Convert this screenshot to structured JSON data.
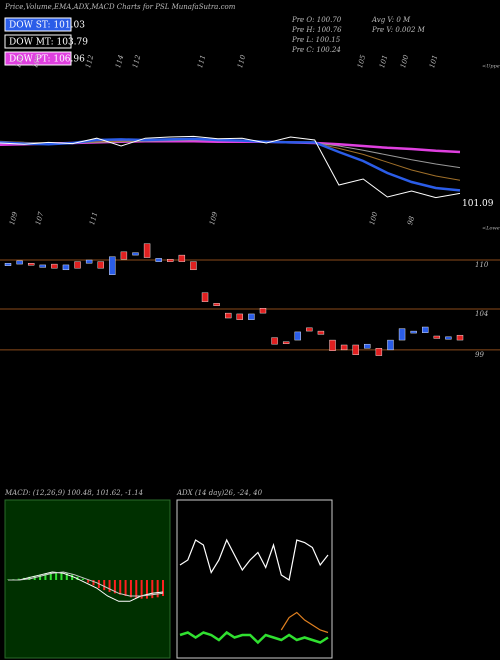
{
  "header": {
    "title": "Price,Volume,EMA,ADX,MACD Charts for PSL MunafaSutra.com"
  },
  "legend": [
    {
      "label": "DOW ST: 101.03",
      "color": "#2b5de8"
    },
    {
      "label": "DOW MT: 103.79",
      "color": "#000000"
    },
    {
      "label": "DOW PT: 106.96",
      "color": "#e040e0"
    }
  ],
  "stats": [
    [
      "Pre O: 100.70",
      "Avg V: 0 M"
    ],
    [
      "Pre H: 100.76",
      "Pre V: 0.002 M"
    ],
    [
      "Pre L: 100.15"
    ],
    [
      "Pre C: 100.24"
    ]
  ],
  "chart_data": [
    {
      "type": "line",
      "ylim": [
        95,
        120
      ],
      "last_price": 101.09,
      "upper_tag": "<Upper",
      "lower_tag": "<Lower",
      "upper_labels": [
        110,
        109,
        112,
        114,
        112,
        111,
        110,
        105,
        101,
        100,
        101
      ],
      "lower_labels": [
        109,
        107,
        111,
        109,
        100,
        98
      ],
      "series": [
        {
          "color": "#e040e0",
          "width": 2.5,
          "values": [
            109.2,
            109.3,
            109.4,
            109.5,
            109.6,
            109.7,
            109.8,
            109.8,
            109.8,
            109.7,
            109.7,
            109.7,
            109.6,
            109.5,
            109.3,
            109.0,
            108.7,
            108.5,
            108.2,
            108.0
          ]
        },
        {
          "color": "#999999",
          "width": 1,
          "values": [
            109.7,
            109.6,
            109.5,
            109.5,
            109.6,
            109.7,
            109.8,
            109.9,
            110.0,
            109.9,
            109.8,
            109.7,
            109.6,
            109.5,
            109.0,
            108.3,
            107.5,
            106.7,
            106.0,
            105.4
          ]
        },
        {
          "color": "#a0702a",
          "width": 1,
          "values": [
            109.8,
            109.6,
            109.5,
            109.5,
            109.7,
            109.8,
            109.9,
            110.0,
            110.1,
            110.0,
            109.9,
            109.7,
            109.6,
            109.5,
            108.6,
            107.6,
            106.3,
            105.0,
            104.0,
            103.3
          ]
        },
        {
          "color": "#2b5de8",
          "width": 2.5,
          "values": [
            109.6,
            109.4,
            109.3,
            109.5,
            110.0,
            110.1,
            110.0,
            110.1,
            110.2,
            110.0,
            109.9,
            109.7,
            109.6,
            109.6,
            108.0,
            106.5,
            104.5,
            103.0,
            102.0,
            101.6
          ]
        },
        {
          "color": "#ffffff",
          "width": 1,
          "values": [
            109.5,
            109.3,
            109.6,
            109.4,
            110.3,
            109.0,
            110.3,
            110.5,
            110.6,
            110.2,
            110.3,
            109.5,
            110.5,
            110.0,
            102.5,
            103.5,
            100.5,
            101.5,
            100.4,
            101.1
          ]
        }
      ]
    },
    {
      "type": "candlestick",
      "ylim": [
        96,
        113
      ],
      "yticks": [
        110,
        104,
        99
      ],
      "up_color": "#2b5de8",
      "down_color": "#e02020",
      "open": [
        109.3,
        109.5,
        109.6,
        109.1,
        109.5,
        108.8,
        109.8,
        109.6,
        109.8,
        108.2,
        111.0,
        110.6,
        112.0,
        109.8,
        110.1,
        110.6,
        109.8,
        106.0,
        104.7,
        103.5,
        103.4,
        102.7,
        104.1,
        100.5,
        100.0,
        100.2,
        101.7,
        101.3,
        100.2,
        99.6,
        99.6,
        99.2,
        99.2,
        99.0,
        100.2,
        101.1,
        101.1,
        100.7,
        100.3,
        100.8
      ],
      "close": [
        109.6,
        109.9,
        109.4,
        109.4,
        109.0,
        109.4,
        109.0,
        110.0,
        109.0,
        110.4,
        110.1,
        110.9,
        110.3,
        110.2,
        109.8,
        109.8,
        108.8,
        104.9,
        104.4,
        102.9,
        102.7,
        103.4,
        103.5,
        99.7,
        99.9,
        101.2,
        101.3,
        100.9,
        98.9,
        99.0,
        98.4,
        99.7,
        98.3,
        100.2,
        101.6,
        101.3,
        101.8,
        100.4,
        100.6,
        100.2
      ]
    },
    {
      "type": "macd",
      "title": "MACD: (12,26,9) 100.48, 101.62, -1.14",
      "ylim": [
        -3,
        3
      ],
      "up_color": "#30e030",
      "down_color": "#ff2020",
      "histogram": [
        0.02,
        0.03,
        0.05,
        0.08,
        0.12,
        0.16,
        0.2,
        0.24,
        0.27,
        0.3,
        0.28,
        0.25,
        0.2,
        0.12,
        0.05,
        -0.1,
        -0.2,
        -0.3,
        -0.38,
        -0.45,
        -0.5,
        -0.55,
        -0.6,
        -0.65,
        -0.68,
        -0.7,
        -0.7,
        -0.68,
        -0.65,
        -0.6
      ],
      "macd": [
        0,
        0,
        0.1,
        0.2,
        0.3,
        0.25,
        0.1,
        -0.1,
        -0.3,
        -0.6,
        -0.8,
        -0.8,
        -0.6,
        -0.5,
        -0.45
      ],
      "signal": [
        0,
        0,
        0.05,
        0.15,
        0.25,
        0.3,
        0.2,
        0.05,
        -0.1,
        -0.3,
        -0.5,
        -0.6,
        -0.6,
        -0.55,
        -0.5
      ]
    },
    {
      "type": "adx",
      "title": "ADX (14 day)26, -24, 40",
      "ylim": [
        0,
        60
      ],
      "series": [
        {
          "color": "#ffffff",
          "values": [
            36,
            38,
            46,
            44,
            33,
            38,
            46,
            40,
            34,
            38,
            41,
            35,
            44,
            32,
            30,
            46,
            45,
            43,
            36,
            40
          ]
        },
        {
          "color": "#30e030",
          "values": [
            8,
            9,
            7,
            9,
            8,
            6,
            9,
            7,
            8,
            8,
            5,
            8,
            7,
            6,
            8,
            6,
            7,
            6,
            5,
            7
          ]
        },
        {
          "color": "#e08020",
          "values": [
            null,
            null,
            null,
            null,
            null,
            null,
            null,
            null,
            null,
            null,
            null,
            null,
            null,
            10,
            15,
            17,
            14,
            12,
            10,
            9
          ]
        }
      ]
    }
  ]
}
